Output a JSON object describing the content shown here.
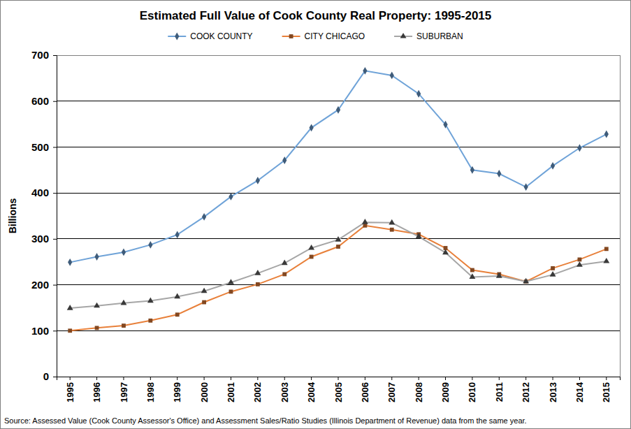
{
  "chart_data": {
    "type": "line",
    "title": "Estimated Full Value of Cook County Real Property: 1995-2015",
    "y_label": "Billions",
    "source": "Source: Assessed Value (Cook County Assessor's Office) and Assessment Sales/Ratio Studies (Illinois Department of Revenue) data from the same year.",
    "categories": [
      "1995",
      "1996",
      "1997",
      "1998",
      "1999",
      "2000",
      "2001",
      "2002",
      "2003",
      "2004",
      "2005",
      "2006",
      "2007",
      "2008",
      "2009",
      "2010",
      "2011",
      "2012",
      "2013",
      "2014",
      "2015"
    ],
    "series": [
      {
        "name": "COOK COUNTY",
        "color": "#6fa3d8",
        "marker": "diamond",
        "values": [
          249,
          261,
          271,
          287,
          309,
          348,
          392,
          427,
          471,
          542,
          581,
          666,
          656,
          616,
          549,
          450,
          442,
          413,
          459,
          498,
          528
        ]
      },
      {
        "name": "CITY CHICAGO",
        "color": "#e8803a",
        "marker": "square",
        "values": [
          100,
          106,
          111,
          122,
          135,
          162,
          185,
          201,
          223,
          261,
          283,
          329,
          320,
          310,
          280,
          232,
          223,
          207,
          236,
          255,
          278
        ]
      },
      {
        "name": "SUBURBAN",
        "color": "#a6a6a6",
        "marker": "triangle",
        "values": [
          149,
          154,
          160,
          165,
          174,
          186,
          205,
          225,
          247,
          280,
          298,
          336,
          335,
          305,
          270,
          217,
          219,
          207,
          222,
          243,
          251
        ]
      }
    ],
    "ylim": [
      0,
      700
    ],
    "yticks": [
      0,
      100,
      200,
      300,
      400,
      500,
      600,
      700
    ],
    "grid": true,
    "legend": "top"
  }
}
